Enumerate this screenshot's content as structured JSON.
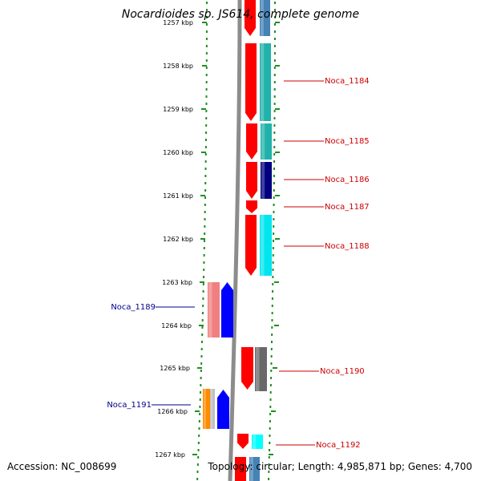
{
  "map": {
    "title": "Nocardioides sp. JS614, complete genome",
    "accession": "Accession: NC_008699",
    "topology": "Topology: circular; Length: 4,985,871 bp; Genes: 4,700",
    "tick_labels": [
      "1257 kbp",
      "1258 kbp",
      "1259 kbp",
      "1260 kbp",
      "1261 kbp",
      "1262 kbp",
      "1263 kbp",
      "1264 kbp",
      "1265 kbp",
      "1266 kbp",
      "1267 kbp"
    ],
    "colors": {
      "background": "#ffffff",
      "backbone": "#8c8c8c",
      "tick_dots": "#1f8f1f",
      "right_label": "#cc0000",
      "left_label": "#00008b"
    },
    "features": [
      {
        "name": "Noca_1184",
        "side": "right",
        "color": "#ff0000",
        "partner_color": "#20b2aa"
      },
      {
        "name": "Noca_1185",
        "side": "right",
        "color": "#ff0000",
        "partner_color": "#20b2aa"
      },
      {
        "name": "Noca_1186",
        "side": "right",
        "color": "#ff0000",
        "partner_color": "#000080"
      },
      {
        "name": "Noca_1187",
        "side": "right",
        "color": "#ff0000",
        "partner_color": ""
      },
      {
        "name": "Noca_1188",
        "side": "right",
        "color": "#ff0000",
        "partner_color": "#00e5ee"
      },
      {
        "name": "Noca_1189",
        "side": "left",
        "color": "#0000ff",
        "partner_color": "#f08080"
      },
      {
        "name": "Noca_1190",
        "side": "right",
        "color": "#ff0000",
        "partner_color": "#696969"
      },
      {
        "name": "Noca_1191",
        "side": "left",
        "color": "#0000ff",
        "partner_color": "#ff8c00"
      },
      {
        "name": "Noca_1192",
        "side": "right",
        "color": "#ff0000",
        "partner_color": "#00ffff"
      }
    ]
  }
}
